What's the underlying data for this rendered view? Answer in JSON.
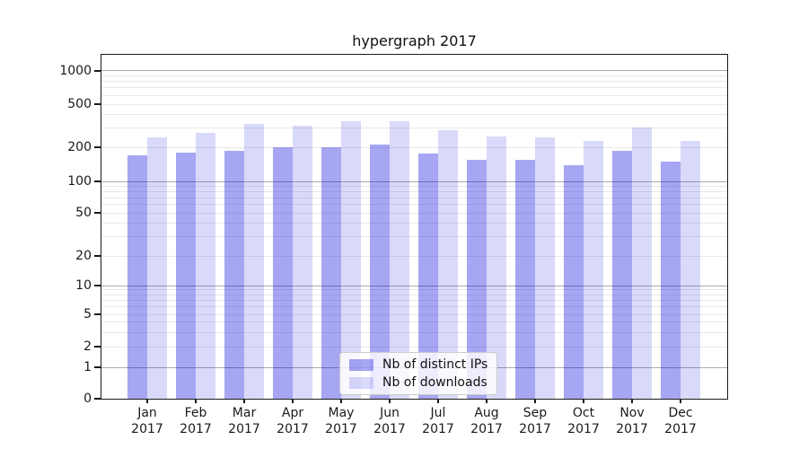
{
  "chart_data": {
    "type": "bar",
    "title": "hypergraph 2017",
    "categories": [
      "Jan",
      "Feb",
      "Mar",
      "Apr",
      "May",
      "Jun",
      "Jul",
      "Aug",
      "Sep",
      "Oct",
      "Nov",
      "Dec"
    ],
    "year_label": "2017",
    "series": [
      {
        "name": "Nb of distinct IPs",
        "key": "distinct-ips",
        "color": "rgba(0,0,222,0.35)",
        "values": [
          170,
          180,
          185,
          200,
          200,
          210,
          175,
          155,
          155,
          140,
          185,
          150
        ]
      },
      {
        "name": "Nb of downloads",
        "key": "downloads",
        "color": "rgba(0,0,222,0.15)",
        "values": [
          245,
          270,
          330,
          315,
          345,
          350,
          290,
          250,
          245,
          230,
          305,
          228
        ]
      }
    ],
    "y_axis": {
      "scale": "asinh",
      "tick_values": [
        0,
        1,
        2,
        5,
        10,
        20,
        50,
        100,
        200,
        500,
        1000
      ],
      "tick_labels": [
        "0",
        "1",
        "2",
        "5",
        "10",
        "20",
        "50",
        "100",
        "200",
        "500",
        "1000"
      ],
      "ylim": [
        0,
        1400
      ]
    },
    "x_axis": {
      "tick_line1": [
        "Jan",
        "Feb",
        "Mar",
        "Apr",
        "May",
        "Jun",
        "Jul",
        "Aug",
        "Sep",
        "Oct",
        "Nov",
        "Dec"
      ],
      "tick_line2": "2017"
    },
    "legend_position": "lower center",
    "grid": "horizontal, major and minor"
  },
  "colors": {
    "bar_distinct_ips": "rgba(0,0,222,0.35)",
    "bar_downloads": "rgba(0,0,222,0.15)",
    "grid_major": "#ababab",
    "grid_minor": "#e9e9e9",
    "spine": "#1a1a1a",
    "text": "#1a1a1a"
  }
}
